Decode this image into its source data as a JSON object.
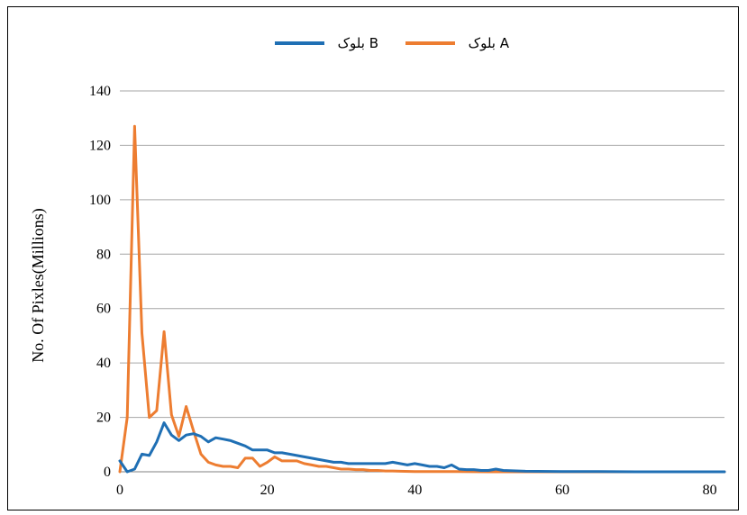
{
  "chart_data": {
    "type": "line",
    "title": "",
    "xlabel": "",
    "ylabel": "No. Of  Pixles(Millions)",
    "xlim": [
      0,
      82
    ],
    "ylim": [
      0,
      140
    ],
    "xticks": [
      0,
      20,
      40,
      60,
      80
    ],
    "yticks": [
      0,
      20,
      40,
      60,
      80,
      100,
      120,
      140
    ],
    "grid": "horizontal",
    "legend_position": "top-center",
    "series": [
      {
        "name": "بلوک B",
        "color": "#1f6fb4",
        "x": [
          0,
          1,
          2,
          3,
          4,
          5,
          6,
          7,
          8,
          9,
          10,
          11,
          12,
          13,
          14,
          15,
          16,
          17,
          18,
          19,
          20,
          21,
          22,
          23,
          24,
          25,
          26,
          27,
          28,
          29,
          30,
          31,
          32,
          33,
          34,
          35,
          36,
          37,
          38,
          39,
          40,
          41,
          42,
          43,
          44,
          45,
          46,
          47,
          48,
          49,
          50,
          51,
          52,
          55,
          60,
          65,
          70,
          75,
          80,
          82
        ],
        "values": [
          4,
          0,
          1,
          6.5,
          6,
          11,
          18,
          13.5,
          11.5,
          13.5,
          14,
          13,
          11,
          12.5,
          12,
          11.5,
          10.5,
          9.5,
          8,
          8,
          8,
          7,
          7,
          6.5,
          6,
          5.5,
          5,
          4.5,
          4,
          3.5,
          3.5,
          3,
          3,
          3,
          3,
          3,
          3,
          3.5,
          3,
          2.5,
          3,
          2.5,
          2,
          2,
          1.5,
          2.5,
          1,
          0.8,
          0.8,
          0.5,
          0.5,
          1,
          0.5,
          0.2,
          0.1,
          0.1,
          0,
          0,
          0,
          0
        ]
      },
      {
        "name": "بلوک A",
        "color": "#ed7d31",
        "x": [
          0,
          1,
          2,
          3,
          4,
          5,
          6,
          7,
          8,
          9,
          10,
          11,
          12,
          13,
          14,
          15,
          16,
          17,
          18,
          19,
          20,
          21,
          22,
          23,
          24,
          25,
          26,
          27,
          28,
          29,
          30,
          31,
          32,
          33,
          34,
          35,
          36,
          37,
          38,
          40,
          45,
          50,
          55,
          60,
          70,
          80,
          82
        ],
        "values": [
          0,
          20,
          127,
          51,
          20,
          22.5,
          51.5,
          21,
          13,
          24,
          15,
          6.5,
          3.5,
          2.5,
          2,
          2,
          1.5,
          5,
          5,
          2,
          3.5,
          5.5,
          4,
          4,
          4,
          3,
          2.5,
          2,
          2,
          1.5,
          1,
          1,
          0.8,
          0.8,
          0.5,
          0.5,
          0.3,
          0.3,
          0.2,
          0.1,
          0.1,
          0,
          0,
          0,
          0,
          0,
          0
        ]
      }
    ]
  }
}
